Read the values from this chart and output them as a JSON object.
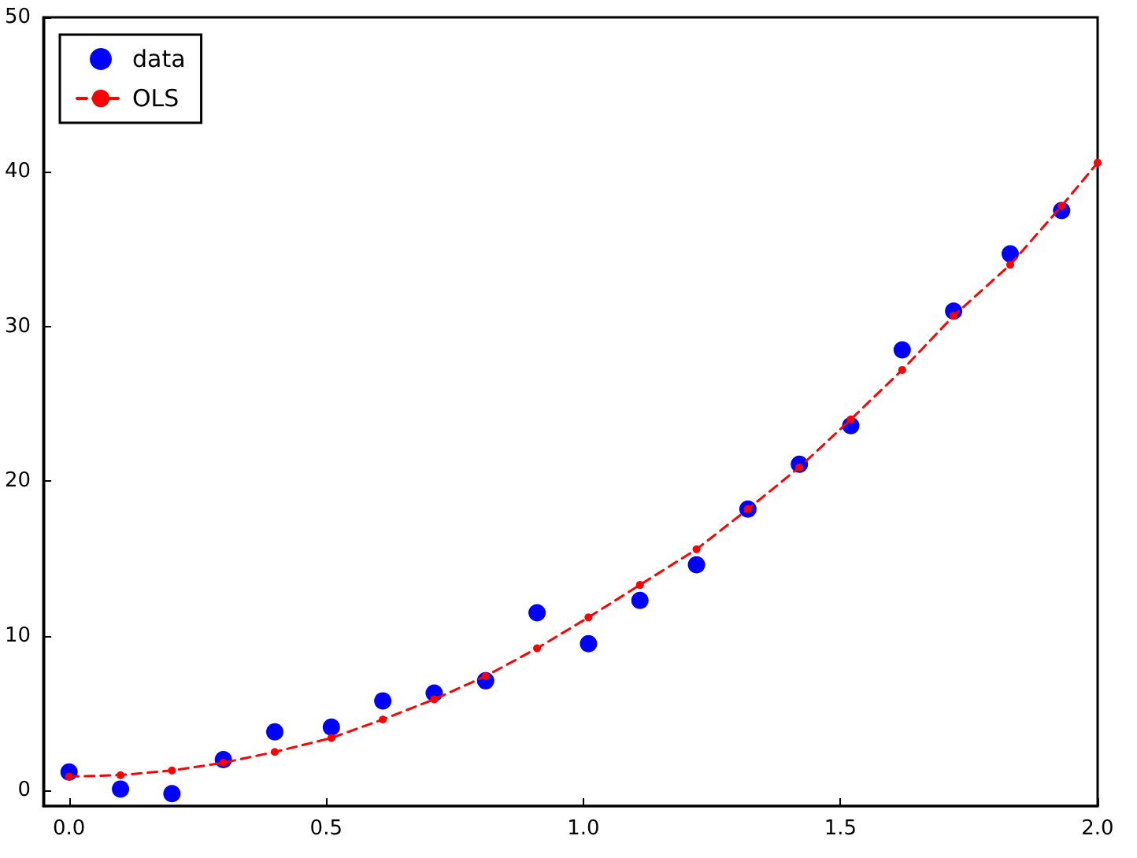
{
  "chart_data": {
    "type": "scatter",
    "xlim": [
      -0.05,
      2.0
    ],
    "ylim": [
      -1,
      50
    ],
    "xticks": [
      {
        "value": 0,
        "label": "0.0"
      },
      {
        "value": 0.5,
        "label": "0.5"
      },
      {
        "value": 1,
        "label": "1.0"
      },
      {
        "value": 1.5,
        "label": "1.5"
      },
      {
        "value": 2,
        "label": "2.0"
      }
    ],
    "yticks": [
      0,
      10,
      20,
      30,
      40,
      50
    ],
    "grid": false,
    "legend": "top left",
    "series": [
      {
        "name": "data",
        "color": "#0000ff",
        "marker": "circle",
        "x": [
          0,
          0.1,
          0.2,
          0.3,
          0.4,
          0.51,
          0.61,
          0.71,
          0.81,
          0.91,
          1.01,
          1.11,
          1.22,
          1.32,
          1.42,
          1.52,
          1.62,
          1.72,
          1.83,
          1.93
        ],
        "values": [
          1.2,
          0.1,
          -0.2,
          2.0,
          3.8,
          4.1,
          5.8,
          6.3,
          7.1,
          11.5,
          9.5,
          12.3,
          14.6,
          18.2,
          21.1,
          23.6,
          28.5,
          31.0,
          34.7,
          37.5
        ]
      },
      {
        "name": "OLS",
        "type": "line",
        "color": "#ff0000",
        "marker": "circle",
        "line_style": "dashed",
        "x": [
          0,
          0.1,
          0.2,
          0.3,
          0.4,
          0.51,
          0.61,
          0.71,
          0.81,
          0.91,
          1.01,
          1.11,
          1.22,
          1.32,
          1.42,
          1.52,
          1.62,
          1.72,
          1.83,
          1.93,
          2.0
        ],
        "values": [
          0.9,
          1.0,
          1.3,
          1.8,
          2.5,
          3.4,
          4.6,
          5.9,
          7.4,
          9.2,
          11.2,
          13.3,
          15.6,
          18.2,
          20.9,
          24.0,
          27.2,
          30.7,
          34.0,
          37.8,
          40.6
        ]
      }
    ]
  }
}
